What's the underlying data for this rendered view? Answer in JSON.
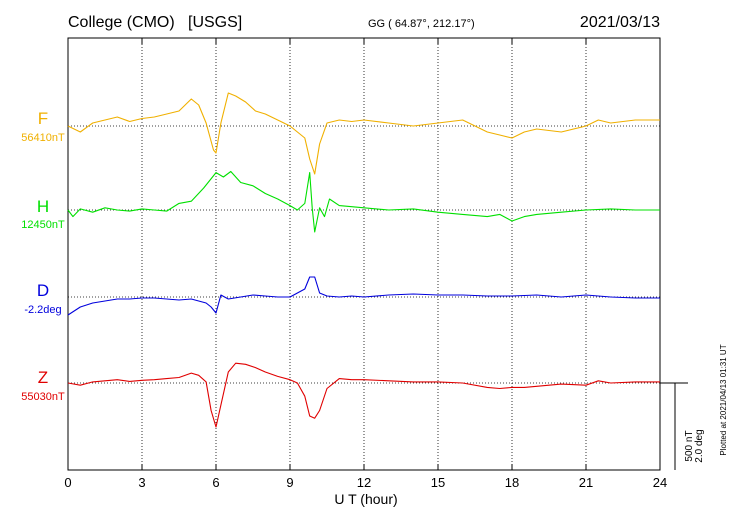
{
  "header": {
    "station": "College (CMO)",
    "source": "[USGS]",
    "coords": "GG ( 64.87°, 212.17°)",
    "date": "2021/03/13"
  },
  "plotted_note": "Plotted at 2021/04/13 01:31  UT",
  "scale_labels": [
    "500 nT",
    "2.0 deg"
  ],
  "colors": {
    "F": "#f0b000",
    "H": "#00e000",
    "D": "#0000dd",
    "Z": "#e00000",
    "frame": "#000000"
  },
  "chart_data": {
    "type": "line",
    "title": "College (CMO)  [USGS]",
    "xlabel": "U T (hour)",
    "ylabel": "",
    "xlim": [
      0,
      24
    ],
    "xticks": [
      0,
      3,
      6,
      9,
      12,
      15,
      18,
      21,
      24
    ],
    "grid": true,
    "series": [
      {
        "name": "F",
        "baseline": "56410nT",
        "unit": "nT",
        "x": [
          0,
          0.5,
          1,
          1.5,
          2,
          2.5,
          3,
          3.5,
          4,
          4.5,
          5,
          5.3,
          5.6,
          5.9,
          6.0,
          6.2,
          6.5,
          6.8,
          7.2,
          7.6,
          8,
          8.5,
          9,
          9.3,
          9.6,
          9.8,
          10.0,
          10.2,
          10.5,
          11,
          11.5,
          12,
          13,
          14,
          15,
          16,
          17,
          17.5,
          18,
          18.5,
          19,
          20,
          21,
          21.5,
          22,
          23,
          24
        ],
        "y": [
          0,
          -20,
          10,
          20,
          30,
          15,
          25,
          30,
          40,
          50,
          90,
          70,
          10,
          -80,
          -90,
          10,
          110,
          100,
          80,
          50,
          40,
          20,
          0,
          -20,
          -40,
          -110,
          -160,
          -60,
          10,
          20,
          15,
          20,
          10,
          0,
          10,
          20,
          -20,
          -30,
          -40,
          -20,
          -10,
          -20,
          0,
          20,
          10,
          20,
          20
        ]
      },
      {
        "name": "H",
        "baseline": "12450nT",
        "unit": "nT",
        "x": [
          0,
          0.2,
          0.5,
          1,
          1.5,
          2,
          2.5,
          3,
          3.5,
          4,
          4.5,
          5,
          5.5,
          6,
          6.3,
          6.6,
          7,
          7.5,
          8,
          8.5,
          9,
          9.3,
          9.6,
          9.8,
          9.9,
          10.0,
          10.2,
          10.4,
          10.6,
          11,
          11.5,
          12,
          13,
          14,
          15,
          16,
          17,
          17.5,
          18,
          18.5,
          19,
          20,
          21,
          22,
          23,
          24
        ],
        "y": [
          0,
          -60,
          10,
          -20,
          20,
          0,
          -10,
          10,
          0,
          -10,
          60,
          80,
          200,
          340,
          300,
          350,
          250,
          220,
          150,
          100,
          40,
          0,
          60,
          340,
          20,
          -200,
          20,
          -60,
          100,
          40,
          30,
          20,
          0,
          10,
          -20,
          -40,
          -60,
          -40,
          -100,
          -60,
          -40,
          -20,
          0,
          10,
          0,
          0
        ]
      },
      {
        "name": "D",
        "baseline": "-2.2deg",
        "unit": "deg",
        "x": [
          0,
          0.5,
          1,
          1.5,
          2,
          2.5,
          3,
          3.5,
          4,
          4.5,
          5,
          5.3,
          5.6,
          5.8,
          6.0,
          6.2,
          6.5,
          7,
          7.5,
          8,
          8.5,
          9,
          9.3,
          9.6,
          9.8,
          10.0,
          10.2,
          10.5,
          11,
          11.5,
          12,
          13,
          14,
          15,
          16,
          17,
          18,
          19,
          20,
          21,
          22,
          23,
          24
        ],
        "y": [
          -0.9,
          -0.5,
          -0.3,
          -0.2,
          -0.1,
          -0.1,
          -0.05,
          -0.05,
          -0.1,
          -0.15,
          -0.1,
          -0.2,
          -0.3,
          -0.5,
          -0.8,
          0.1,
          -0.1,
          0,
          0.1,
          0.05,
          0.0,
          0.0,
          0.2,
          0.4,
          1.0,
          1.0,
          0.2,
          0.05,
          0.0,
          0.05,
          0.0,
          0.1,
          0.15,
          0.1,
          0.1,
          0.05,
          0.05,
          0.1,
          0.0,
          0.1,
          0.0,
          -0.05,
          -0.05
        ]
      },
      {
        "name": "Z",
        "baseline": "55030nT",
        "unit": "nT",
        "x": [
          0,
          0.5,
          1,
          1.5,
          2,
          2.5,
          3,
          3.5,
          4,
          4.5,
          5,
          5.3,
          5.6,
          5.8,
          6.0,
          6.2,
          6.5,
          6.8,
          7.2,
          7.6,
          8,
          8.5,
          9,
          9.3,
          9.6,
          9.8,
          10.0,
          10.2,
          10.5,
          11,
          11.5,
          12,
          13,
          14,
          15,
          16,
          17,
          17.5,
          18,
          18.5,
          19,
          20,
          21,
          21.5,
          22,
          23,
          24
        ],
        "y": [
          0,
          -20,
          10,
          20,
          30,
          15,
          25,
          30,
          40,
          50,
          90,
          70,
          10,
          -250,
          -400,
          -200,
          100,
          180,
          170,
          140,
          100,
          60,
          30,
          0,
          -120,
          -300,
          -320,
          -250,
          -50,
          40,
          30,
          30,
          20,
          10,
          10,
          0,
          -40,
          -50,
          -40,
          -40,
          -30,
          -10,
          -20,
          20,
          0,
          10,
          10
        ]
      }
    ]
  }
}
